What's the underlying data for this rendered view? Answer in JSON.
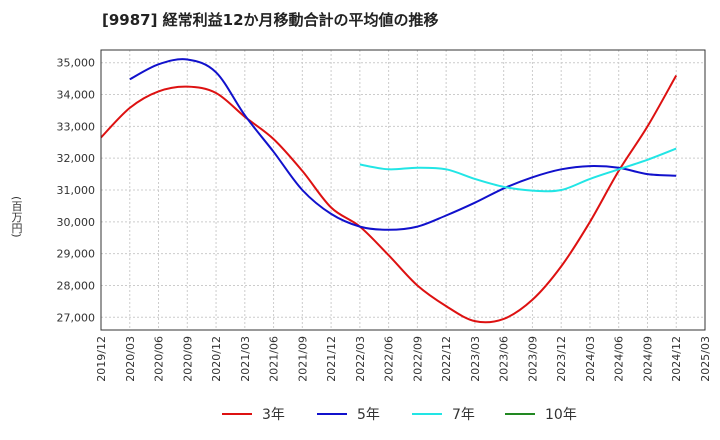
{
  "chart_data": {
    "type": "line",
    "title": "[9987]  経常利益12か月移動合計の平均値の推移",
    "xlabel": "",
    "ylabel": "(百万円)",
    "ylim": [
      26600,
      35400
    ],
    "yticks": [
      27000,
      28000,
      29000,
      30000,
      31000,
      32000,
      33000,
      34000,
      35000
    ],
    "ytick_labels": [
      "27,000",
      "28,000",
      "29,000",
      "30,000",
      "31,000",
      "32,000",
      "33,000",
      "34,000",
      "35,000"
    ],
    "x_categories": [
      "2019/12",
      "2020/03",
      "2020/06",
      "2020/09",
      "2020/12",
      "2021/03",
      "2021/06",
      "2021/09",
      "2021/12",
      "2022/03",
      "2022/06",
      "2022/09",
      "2022/12",
      "2023/03",
      "2023/06",
      "2023/09",
      "2023/12",
      "2024/03",
      "2024/06",
      "2024/09",
      "2024/12",
      "2025/03"
    ],
    "grid": true,
    "legend_position": "bottom",
    "series": [
      {
        "name": "3年",
        "color": "#dd1111",
        "x": [
          "2019/12",
          "2020/03",
          "2020/06",
          "2020/09",
          "2020/12",
          "2021/03",
          "2021/06",
          "2021/09",
          "2021/12",
          "2022/03",
          "2022/06",
          "2022/09",
          "2022/12",
          "2023/03",
          "2023/06",
          "2023/09",
          "2023/12",
          "2024/03",
          "2024/06",
          "2024/09",
          "2024/12"
        ],
        "values": [
          32650,
          33580,
          34100,
          34250,
          34050,
          33300,
          32600,
          31600,
          30450,
          29850,
          28950,
          28000,
          27350,
          26880,
          26950,
          27550,
          28600,
          30000,
          31600,
          33000,
          34600
        ]
      },
      {
        "name": "5年",
        "color": "#1111cc",
        "x": [
          "2020/03",
          "2020/06",
          "2020/09",
          "2020/12",
          "2021/03",
          "2021/06",
          "2021/09",
          "2021/12",
          "2022/03",
          "2022/06",
          "2022/09",
          "2022/12",
          "2023/03",
          "2023/06",
          "2023/09",
          "2023/12",
          "2024/03",
          "2024/06",
          "2024/09",
          "2024/12"
        ],
        "values": [
          34480,
          34950,
          35100,
          34700,
          33350,
          32200,
          31000,
          30250,
          29850,
          29750,
          29850,
          30200,
          30600,
          31050,
          31400,
          31650,
          31750,
          31700,
          31500,
          31450
        ]
      },
      {
        "name": "7年",
        "color": "#22e5e5",
        "x": [
          "2022/03",
          "2022/06",
          "2022/09",
          "2022/12",
          "2023/03",
          "2023/06",
          "2023/09",
          "2023/12",
          "2024/03",
          "2024/06",
          "2024/09",
          "2024/12"
        ],
        "values": [
          31800,
          31650,
          31700,
          31650,
          31350,
          31100,
          30980,
          31000,
          31350,
          31650,
          31950,
          32300
        ]
      },
      {
        "name": "10年",
        "color": "#228822",
        "x": [],
        "values": []
      }
    ]
  }
}
